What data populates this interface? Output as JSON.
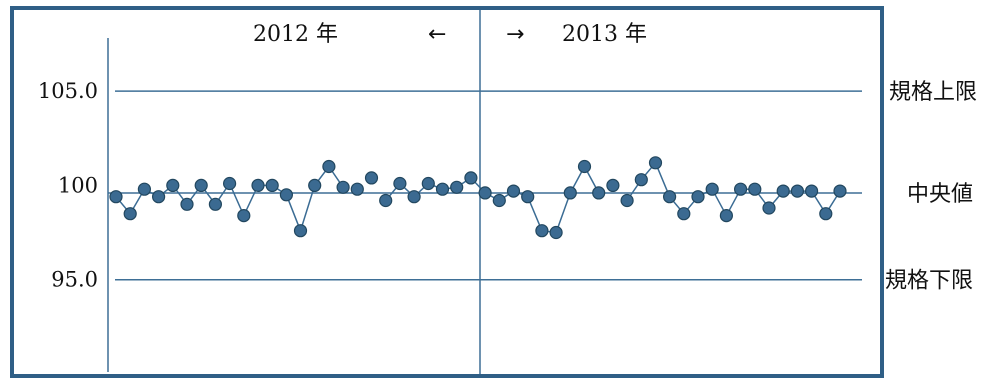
{
  "chart_data": {
    "type": "line",
    "header": {
      "left_year": "2012 年",
      "left_arrow": "←",
      "right_arrow": "→",
      "right_year": "2013 年"
    },
    "y_ticks": [
      "105.0",
      "100",
      "95.0"
    ],
    "y_tick_values": [
      105.0,
      100.0,
      95.0
    ],
    "ylim": [
      90.0,
      109.3
    ],
    "reference_lines": [
      {
        "label": "規格上限",
        "value": 105.0
      },
      {
        "label": "中央値",
        "value": 99.6
      },
      {
        "label": "規格下限",
        "value": 95.0
      }
    ],
    "series": [
      {
        "values": [
          99.4,
          98.5,
          99.8,
          99.4,
          100.0,
          99.0,
          100.0,
          99.0,
          100.1,
          98.4,
          100.0,
          100.0,
          99.5,
          97.6,
          100.0,
          101.0,
          99.9,
          99.8,
          100.4,
          99.2,
          100.1,
          99.4,
          100.1,
          99.8,
          99.9,
          100.4,
          99.6,
          99.2,
          99.7,
          99.4,
          97.6,
          97.5,
          99.6,
          101.0,
          99.6,
          100.0,
          99.2,
          100.3,
          101.2,
          99.4,
          98.5,
          99.4,
          99.8,
          98.4,
          99.8,
          99.8,
          98.8,
          99.7,
          99.7,
          99.7,
          98.5,
          99.7
        ],
        "isolated": [
          false,
          false,
          false,
          false,
          false,
          false,
          false,
          false,
          false,
          false,
          false,
          false,
          false,
          false,
          false,
          false,
          false,
          true,
          true,
          false,
          false,
          false,
          false,
          false,
          false,
          false,
          false,
          false,
          false,
          false,
          false,
          false,
          false,
          false,
          false,
          true,
          false,
          false,
          false,
          false,
          false,
          false,
          false,
          false,
          false,
          false,
          false,
          false,
          false,
          false,
          false,
          false
        ],
        "color": "#3b6a91"
      }
    ],
    "colors": {
      "lines": "#3e6f96",
      "frame": "#2f5f86",
      "points": "#3b6a91"
    }
  }
}
